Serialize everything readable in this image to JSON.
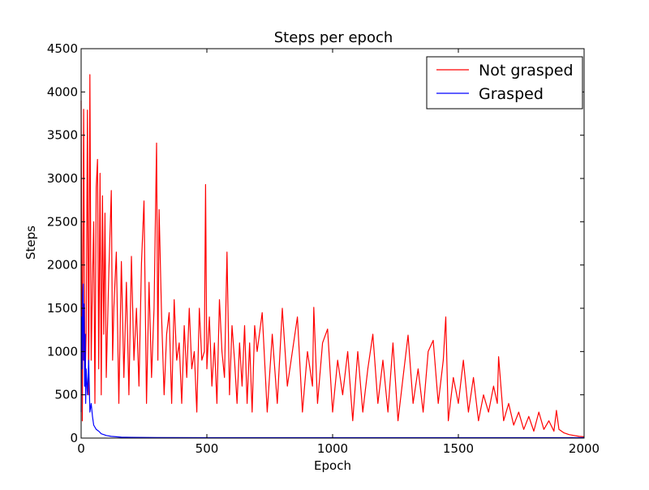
{
  "chart_data": {
    "type": "line",
    "title": "Steps per epoch",
    "xlabel": "Epoch",
    "ylabel": "Steps",
    "xlim": [
      0,
      2000
    ],
    "ylim": [
      0,
      4500
    ],
    "xticks": [
      0,
      500,
      1000,
      1500,
      2000
    ],
    "yticks": [
      0,
      500,
      1000,
      1500,
      2000,
      2500,
      3000,
      3500,
      4000,
      4500
    ],
    "grid": false,
    "legend": {
      "placement": "top-right"
    },
    "series": [
      {
        "name": "Not grasped",
        "color": "#ff0000",
        "x": [
          0,
          5,
          10,
          15,
          20,
          25,
          30,
          35,
          40,
          45,
          50,
          55,
          60,
          65,
          70,
          75,
          80,
          85,
          90,
          95,
          100,
          110,
          120,
          125,
          130,
          140,
          150,
          160,
          170,
          180,
          190,
          200,
          210,
          220,
          230,
          240,
          250,
          260,
          270,
          280,
          290,
          300,
          305,
          310,
          320,
          330,
          340,
          350,
          360,
          370,
          380,
          390,
          400,
          410,
          420,
          430,
          440,
          450,
          460,
          470,
          480,
          490,
          495,
          500,
          510,
          520,
          530,
          540,
          550,
          560,
          570,
          580,
          590,
          600,
          610,
          620,
          630,
          640,
          650,
          660,
          670,
          680,
          690,
          700,
          720,
          740,
          760,
          780,
          800,
          820,
          840,
          860,
          880,
          900,
          920,
          925,
          940,
          960,
          980,
          1000,
          1020,
          1040,
          1060,
          1080,
          1100,
          1120,
          1140,
          1160,
          1180,
          1200,
          1220,
          1240,
          1260,
          1280,
          1300,
          1320,
          1340,
          1360,
          1380,
          1400,
          1420,
          1440,
          1450,
          1460,
          1480,
          1500,
          1520,
          1540,
          1560,
          1580,
          1600,
          1620,
          1640,
          1655,
          1660,
          1680,
          1700,
          1720,
          1740,
          1760,
          1780,
          1800,
          1820,
          1840,
          1860,
          1880,
          1890,
          1900,
          1920,
          1940,
          1960,
          1980,
          2000
        ],
        "values": [
          3900,
          200,
          3800,
          600,
          1200,
          3790,
          500,
          4200,
          900,
          1800,
          2500,
          400,
          2900,
          3220,
          800,
          3060,
          500,
          2800,
          1200,
          2600,
          700,
          1900,
          2860,
          900,
          1500,
          2150,
          400,
          2040,
          700,
          1800,
          500,
          2100,
          900,
          1500,
          600,
          2020,
          2740,
          400,
          1800,
          700,
          1500,
          3410,
          900,
          2640,
          1400,
          500,
          1200,
          1450,
          400,
          1600,
          900,
          1100,
          400,
          1300,
          700,
          1500,
          800,
          1000,
          300,
          1500,
          900,
          1000,
          2930,
          800,
          1400,
          600,
          1100,
          400,
          1600,
          1000,
          700,
          2150,
          500,
          1300,
          900,
          400,
          1100,
          600,
          1300,
          400,
          1100,
          300,
          1300,
          1000,
          1450,
          300,
          1200,
          400,
          1500,
          600,
          1000,
          1400,
          300,
          1000,
          600,
          1510,
          400,
          1100,
          1260,
          300,
          900,
          500,
          1000,
          200,
          1000,
          300,
          800,
          1200,
          400,
          900,
          300,
          1100,
          200,
          700,
          1190,
          400,
          800,
          300,
          1000,
          1130,
          400,
          900,
          1400,
          200,
          700,
          400,
          900,
          300,
          700,
          200,
          500,
          300,
          600,
          400,
          940,
          200,
          400,
          150,
          300,
          100,
          250,
          80,
          300,
          100,
          200,
          80,
          320,
          100,
          60,
          40,
          30,
          20,
          15
        ]
      },
      {
        "name": "Grasped",
        "color": "#0000ff",
        "x": [
          0,
          2,
          4,
          6,
          8,
          10,
          12,
          14,
          16,
          18,
          20,
          25,
          30,
          35,
          40,
          45,
          50,
          60,
          70,
          80,
          90,
          100,
          120,
          140,
          160,
          200,
          300,
          500,
          800,
          1000,
          1200,
          1500,
          1800,
          2000
        ],
        "values": [
          300,
          1400,
          800,
          1650,
          1780,
          900,
          1550,
          600,
          1200,
          400,
          800,
          500,
          900,
          300,
          400,
          250,
          150,
          100,
          80,
          50,
          40,
          30,
          20,
          15,
          10,
          8,
          6,
          5,
          5,
          5,
          5,
          5,
          5,
          5
        ]
      }
    ]
  }
}
